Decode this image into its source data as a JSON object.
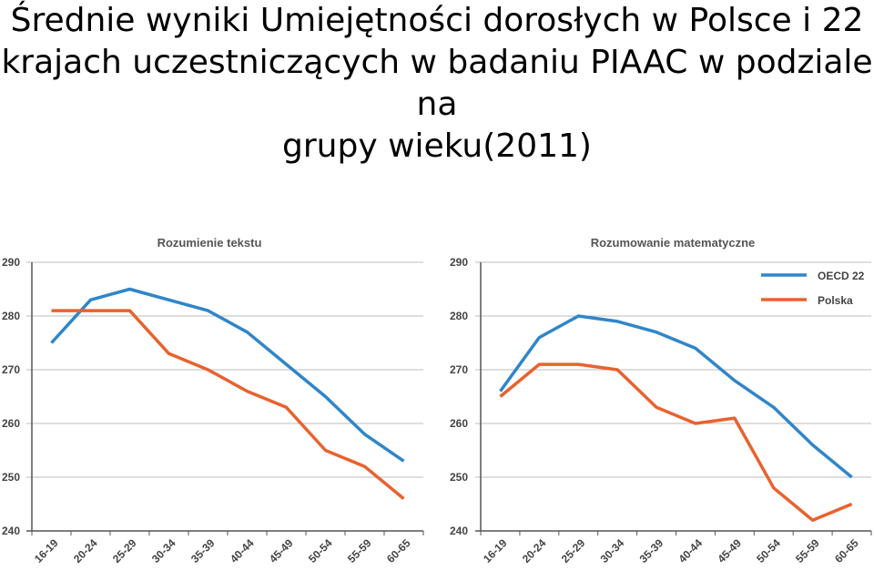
{
  "page": {
    "title_lines": [
      "Średnie wyniki Umiejętności dorosłych w Polsce i 22",
      "krajach uczestniczących w badaniu PIAAC w podziale na",
      "grupy wieku(2011)"
    ]
  },
  "colors": {
    "oecd": "#2f86c9",
    "polska": "#e8622f",
    "grid": "#bdbdbd",
    "axis": "#555555"
  },
  "chart_data": [
    {
      "type": "line",
      "title": "Rozumienie tekstu",
      "categories": [
        "16-19",
        "20-24",
        "25-29",
        "30-34",
        "35-39",
        "40-44",
        "45-49",
        "50-54",
        "55-59",
        "60-65"
      ],
      "ylim": [
        240,
        290
      ],
      "yticks": [
        240,
        250,
        260,
        270,
        280,
        290
      ],
      "grid": true,
      "legend": "none",
      "series": [
        {
          "key": "oecd",
          "name": "OECD 22",
          "values": [
            275,
            283,
            285,
            283,
            281,
            277,
            271,
            265,
            258,
            253
          ]
        },
        {
          "key": "polska",
          "name": "Polska",
          "values": [
            281,
            281,
            281,
            273,
            270,
            266,
            263,
            255,
            252,
            246
          ]
        }
      ]
    },
    {
      "type": "line",
      "title": "Rozumowanie matematyczne",
      "categories": [
        "16-19",
        "20-24",
        "25-29",
        "30-34",
        "35-39",
        "40-44",
        "45-49",
        "50-54",
        "55-59",
        "60-65"
      ],
      "ylim": [
        240,
        290
      ],
      "yticks": [
        240,
        250,
        260,
        270,
        280,
        290
      ],
      "grid": true,
      "legend": "top-right",
      "series": [
        {
          "key": "oecd",
          "name": "OECD 22",
          "values": [
            266,
            276,
            280,
            279,
            277,
            274,
            268,
            263,
            256,
            250
          ]
        },
        {
          "key": "polska",
          "name": "Polska",
          "values": [
            265,
            271,
            271,
            270,
            263,
            260,
            261,
            248,
            242,
            245
          ]
        }
      ]
    }
  ]
}
